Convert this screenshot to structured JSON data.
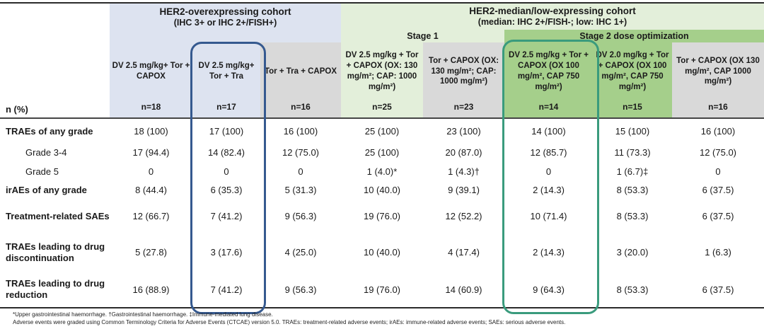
{
  "chart_data": {
    "type": "table",
    "cohort_headers": [
      {
        "title": "HER2-overexpressing cohort",
        "subtitle": "(IHC 3+ or IHC 2+/FISH+)"
      },
      {
        "title": "HER2-median/low-expressing cohort",
        "subtitle": "(median: IHC 2+/FISH-; low: IHC 1+)"
      }
    ],
    "stage_headers": [
      {
        "label": "Stage 1"
      },
      {
        "label": "Stage 2 dose optimization"
      }
    ],
    "corner_label": "n (%)",
    "columns": [
      {
        "header": "DV 2.5 mg/kg+ Tor + CAPOX",
        "n": "n=18",
        "tone": "blue",
        "highlighted": false
      },
      {
        "header": "DV 2.5 mg/kg+ Tor + Tra",
        "n": "n=17",
        "tone": "blue",
        "highlighted": true
      },
      {
        "header": "Tor + Tra + CAPOX",
        "n": "n=16",
        "tone": "gray",
        "highlighted": false
      },
      {
        "header": "DV 2.5 mg/kg + Tor + CAPOX (OX: 130 mg/m²; CAP: 1000 mg/m²)",
        "n": "n=25",
        "tone": "lightgreen",
        "highlighted": false
      },
      {
        "header": "Tor + CAPOX (OX: 130 mg/m²; CAP: 1000 mg/m²)",
        "n": "n=23",
        "tone": "gray",
        "highlighted": false
      },
      {
        "header": "DV 2.5 mg/kg + Tor + CAPOX (OX 100 mg/m², CAP 750 mg/m²)",
        "n": "n=14",
        "tone": "green",
        "highlighted": true
      },
      {
        "header": "DV 2.0 mg/kg + Tor + CAPOX (OX 100 mg/m², CAP 750 mg/m²)",
        "n": "n=15",
        "tone": "green",
        "highlighted": false
      },
      {
        "header": "Tor + CAPOX (OX 130 mg/m², CAP 1000 mg/m²)",
        "n": "n=16",
        "tone": "gray",
        "highlighted": false
      }
    ],
    "rows": [
      {
        "label": "TRAEs of any grade",
        "style": "bold",
        "values": [
          "18 (100)",
          "17 (100)",
          "16 (100)",
          "25 (100)",
          "23 (100)",
          "14 (100)",
          "15 (100)",
          "16 (100)"
        ]
      },
      {
        "label": "Grade 3-4",
        "style": "indent",
        "values": [
          "17 (94.4)",
          "14 (82.4)",
          "12 (75.0)",
          "25 (100)",
          "20 (87.0)",
          "12 (85.7)",
          "11 (73.3)",
          "12 (75.0)"
        ]
      },
      {
        "label": "Grade 5",
        "style": "indent",
        "values": [
          "0",
          "0",
          "0",
          "1 (4.0)*",
          "1 (4.3)†",
          "0",
          "1 (6.7)‡",
          "0"
        ]
      },
      {
        "label": "irAEs of any grade",
        "style": "bold",
        "values": [
          "8 (44.4)",
          "6 (35.3)",
          "5 (31.3)",
          "10 (40.0)",
          "9 (39.1)",
          "2 (14.3)",
          "8 (53.3)",
          "6 (37.5)"
        ]
      },
      {
        "label": "Treatment-related SAEs",
        "style": "bold",
        "values": [
          "12 (66.7)",
          "7 (41.2)",
          "9 (56.3)",
          "19 (76.0)",
          "12 (52.2)",
          "10 (71.4)",
          "8 (53.3)",
          "6 (37.5)"
        ]
      },
      {
        "label": "TRAEs leading to drug discontinuation",
        "style": "bold",
        "values": [
          "5 (27.8)",
          "3 (17.6)",
          "4 (25.0)",
          "10 (40.0)",
          "4 (17.4)",
          "2 (14.3)",
          "3 (20.0)",
          "1 (6.3)"
        ]
      },
      {
        "label": "TRAEs leading to drug reduction",
        "style": "bold",
        "values": [
          "16 (88.9)",
          "7 (41.2)",
          "9 (56.3)",
          "19 (76.0)",
          "14 (60.9)",
          "9 (64.3)",
          "8 (53.3)",
          "6 (37.5)"
        ]
      }
    ],
    "footnotes": [
      "*Upper gastrointestinal haemorrhage. †Gastrointestinal haemorrhage. ‡Immune-mediated lung disease.",
      "Adverse events were graded using Common Terminology Criteria for Adverse Events (CTCAE) version 5.0. TRAEs: treatment-related adverse events; irAEs: immune-related adverse events; SAEs: serious adverse events."
    ],
    "colors": {
      "blue_bg": "#dde3f0",
      "light_green_bg": "#e3efda",
      "green_bg": "#a5cf8b",
      "gray_bg": "#d9d9d9",
      "blue_outline": "#35598f",
      "green_outline": "#3a9b7d"
    }
  }
}
